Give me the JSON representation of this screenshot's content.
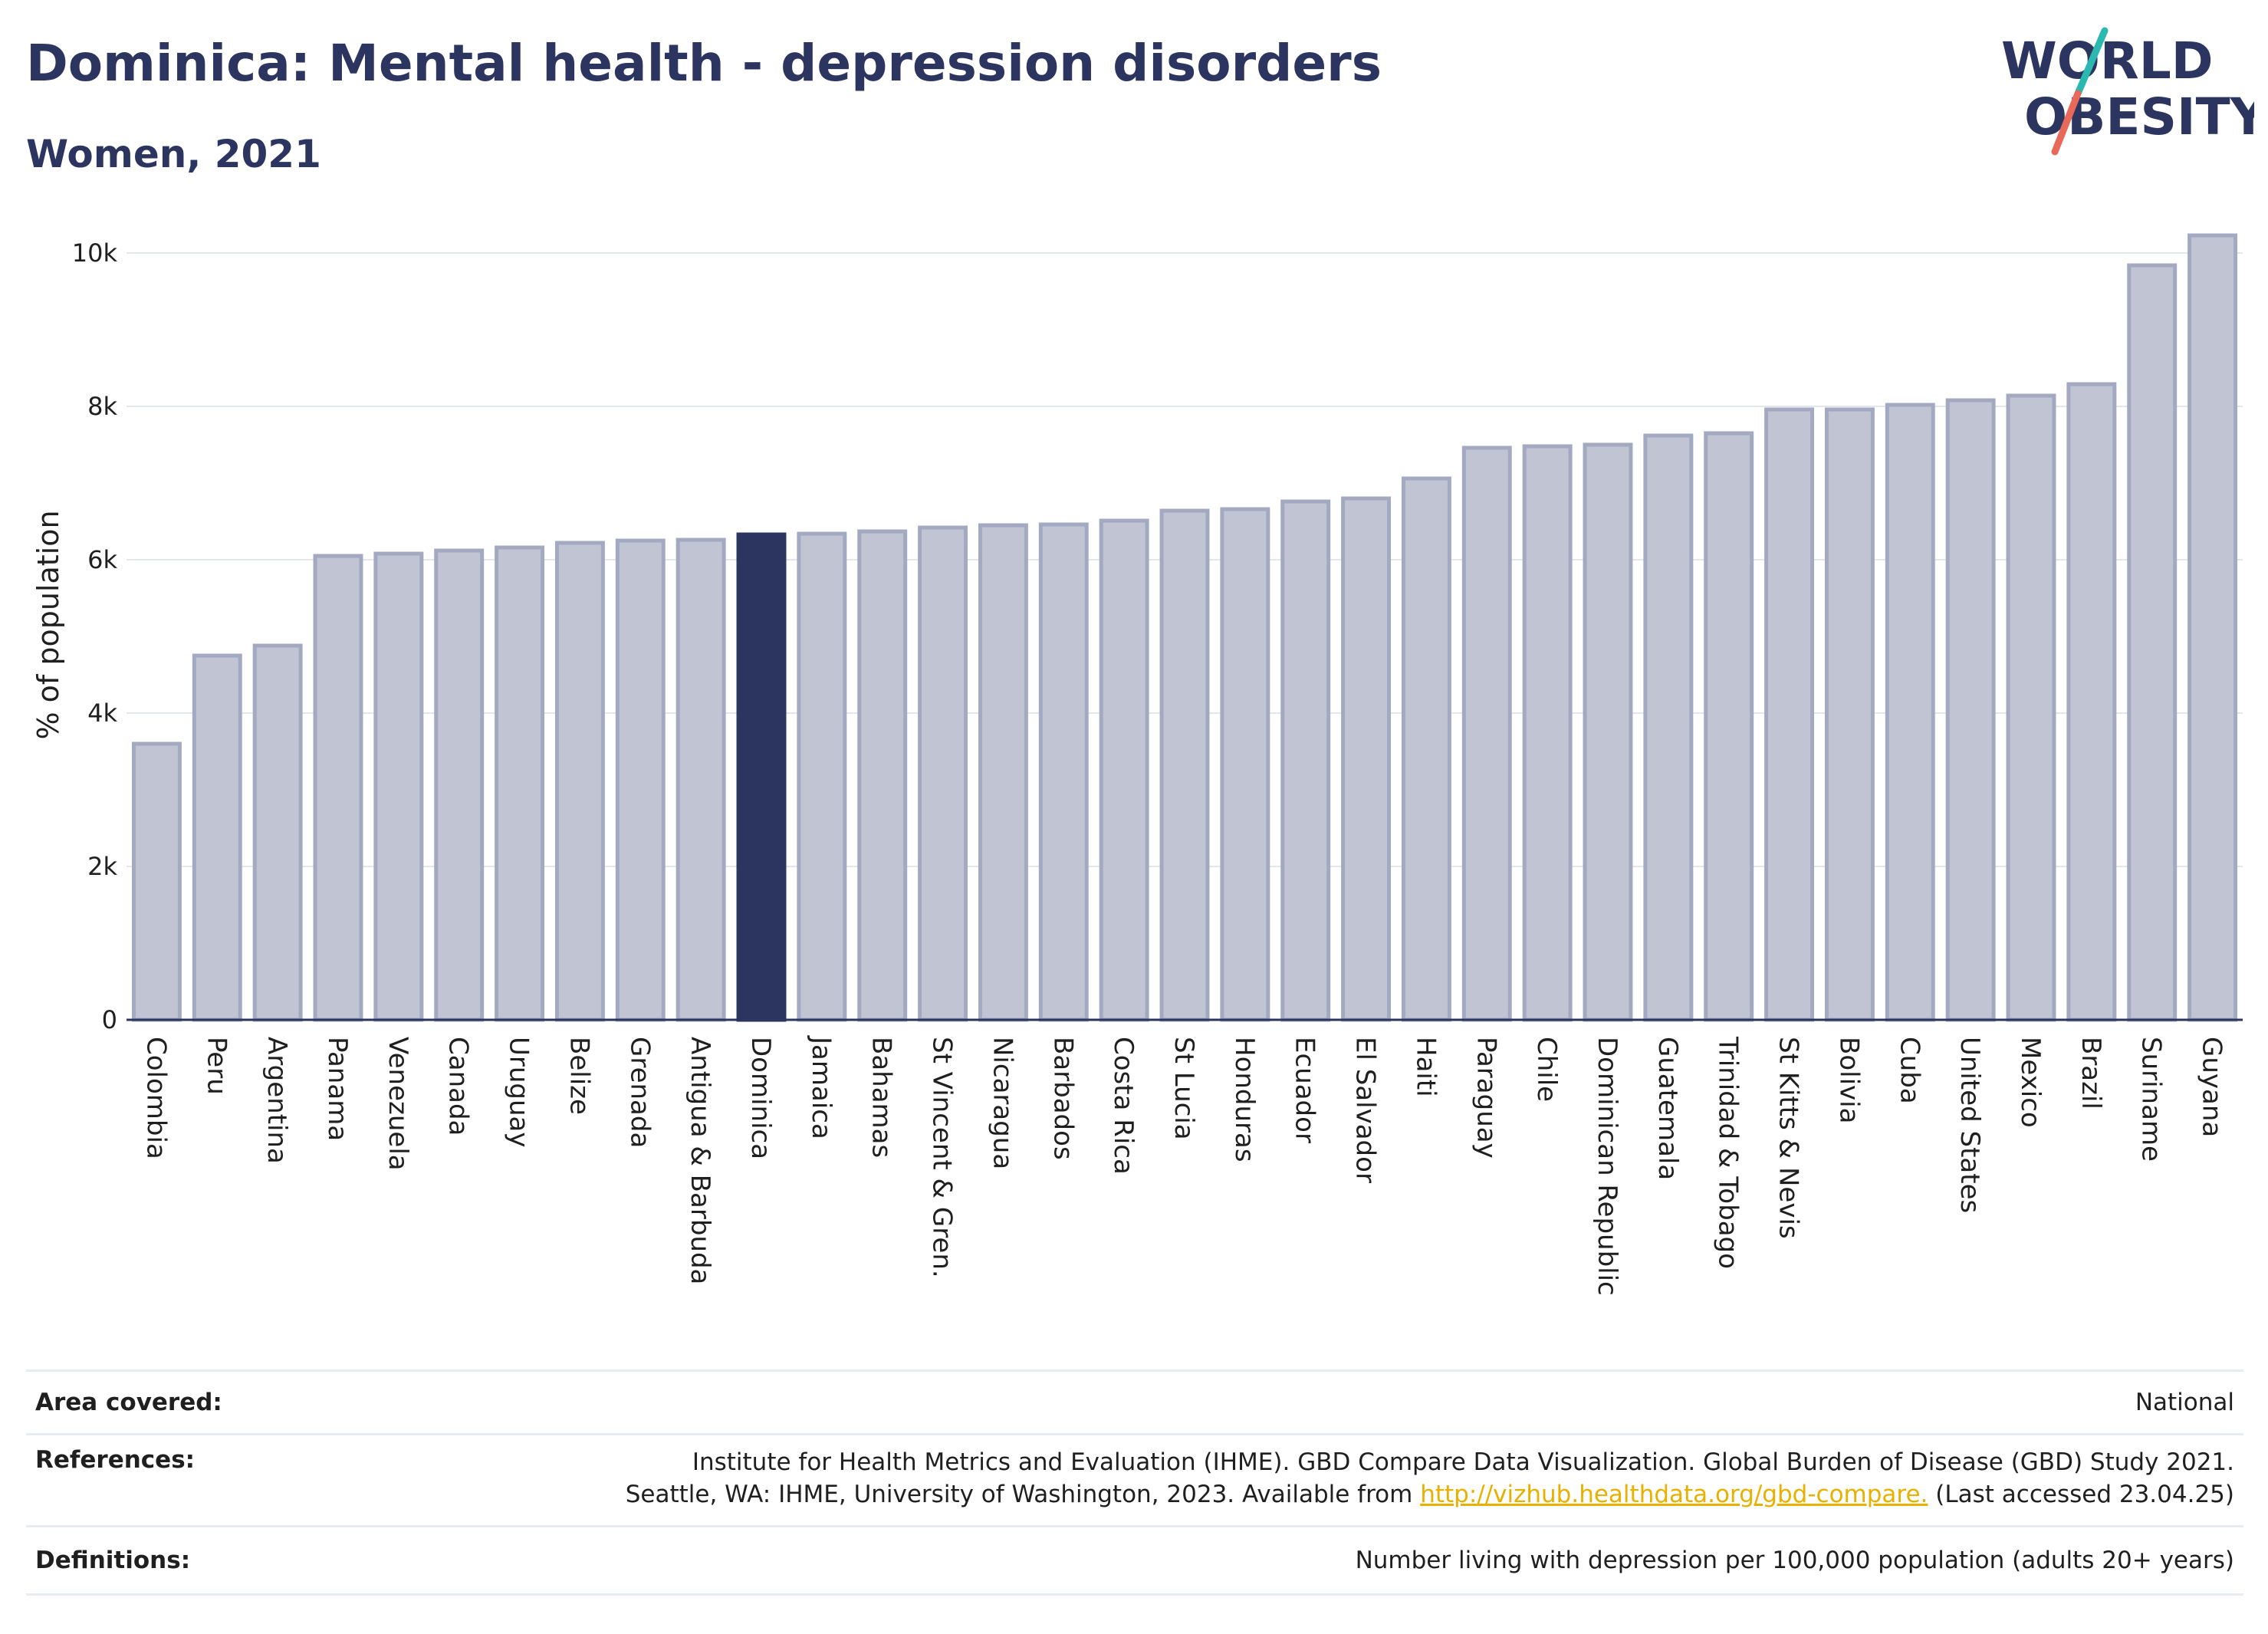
{
  "title": "Dominica: Mental health - depression disorders",
  "subtitle": "Women, 2021",
  "logo": {
    "line1": "WORLD",
    "line2": "OBESITY"
  },
  "chart_data": {
    "type": "bar",
    "ylabel": "% of population",
    "ylim": [
      0,
      10300
    ],
    "yticks": [
      0,
      2000,
      4000,
      6000,
      8000,
      10000
    ],
    "ytick_labels": [
      "0",
      "2k",
      "4k",
      "6k",
      "8k",
      "10k"
    ],
    "grid": true,
    "highlight": "Dominica",
    "categories": [
      "Colombia",
      "Peru",
      "Argentina",
      "Panama",
      "Venezuela",
      "Canada",
      "Uruguay",
      "Belize",
      "Grenada",
      "Antigua & Barbuda",
      "Dominica",
      "Jamaica",
      "Bahamas",
      "St Vincent & Gren.",
      "Nicaragua",
      "Barbados",
      "Costa Rica",
      "St Lucia",
      "Honduras",
      "Ecuador",
      "El Salvador",
      "Haiti",
      "Paraguay",
      "Chile",
      "Dominican Republic",
      "Guatemala",
      "Trinidad & Tobago",
      "St Kitts & Nevis",
      "Bolivia",
      "Cuba",
      "United States",
      "Mexico",
      "Brazil",
      "Suriname",
      "Guyana"
    ],
    "values": [
      3600,
      4750,
      4880,
      6050,
      6080,
      6120,
      6160,
      6220,
      6250,
      6260,
      6330,
      6340,
      6370,
      6420,
      6450,
      6460,
      6510,
      6640,
      6660,
      6760,
      6800,
      7060,
      7460,
      7480,
      7500,
      7620,
      7650,
      7960,
      7960,
      8020,
      8080,
      8140,
      8290,
      9840,
      10230
    ],
    "colors": {
      "bar": "#c0c4d3",
      "bar_edge": "#a3a9c0",
      "highlight": "#2b3560",
      "grid": "#e4e6ee",
      "axis": "#2b3560"
    }
  },
  "footer": {
    "area_label": "Area covered:",
    "area_value": "National",
    "references_label": "References:",
    "references_line1": "Institute for Health Metrics and Evaluation (IHME). GBD Compare Data Visualization. Global Burden of Disease (GBD) Study 2021.",
    "references_line2_pre": "Seattle, WA: IHME, University of Washington, 2023. Available from ",
    "references_link": "http://vizhub.healthdata.org/gbd-compare.",
    "references_line2_post": " (Last accessed 23.04.25)",
    "definitions_label": "Definitions:",
    "definitions_value": "Number living with depression per 100,000 population (adults 20+ years)"
  }
}
